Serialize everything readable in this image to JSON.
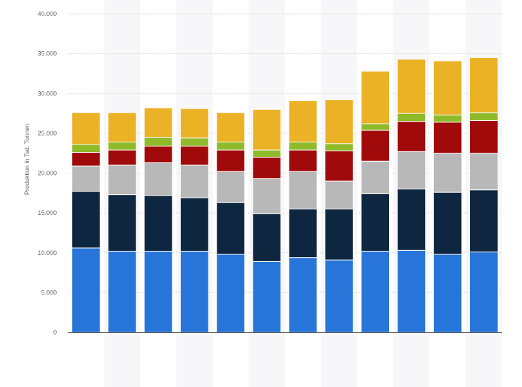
{
  "chart_data": {
    "type": "bar",
    "stacked": true,
    "title": "",
    "xlabel": "",
    "ylabel": "Produktion in Tsd. Tonnen",
    "ylim": [
      0,
      40000
    ],
    "yticks": [
      0,
      5000,
      10000,
      15000,
      20000,
      25000,
      30000,
      35000,
      40000
    ],
    "ytick_labels": [
      "0",
      "5.000",
      "10.000",
      "15.000",
      "20.000",
      "25.000",
      "30.000",
      "35.000",
      "40.000"
    ],
    "grid": true,
    "legend": "none",
    "categories": [
      "",
      "",
      "",
      "",
      "",
      "",
      "",
      "",
      "",
      "",
      "",
      ""
    ],
    "series": [
      {
        "color": "#2775d9",
        "values": [
          10600,
          10200,
          10200,
          10200,
          9800,
          8900,
          9400,
          9100,
          10200,
          10300,
          9800,
          10100
        ]
      },
      {
        "color": "#0e2640",
        "values": [
          7100,
          7100,
          7000,
          6700,
          6500,
          6000,
          6100,
          6400,
          7200,
          7700,
          7800,
          7800
        ]
      },
      {
        "color": "#b8b8b8",
        "values": [
          3200,
          3700,
          4100,
          4100,
          3900,
          4400,
          4700,
          3500,
          4100,
          4700,
          4900,
          4600
        ]
      },
      {
        "color": "#a10a0a",
        "values": [
          1700,
          1900,
          2100,
          2400,
          2700,
          2700,
          2700,
          3800,
          3900,
          3800,
          3900,
          4100
        ]
      },
      {
        "color": "#8fba2a",
        "values": [
          1000,
          1000,
          1100,
          1000,
          1000,
          900,
          1000,
          900,
          800,
          1000,
          900,
          1000
        ]
      },
      {
        "color": "#ebb226",
        "values": [
          4000,
          3700,
          3700,
          3700,
          3700,
          5100,
          5200,
          5500,
          6600,
          6800,
          6800,
          6900
        ]
      }
    ]
  }
}
